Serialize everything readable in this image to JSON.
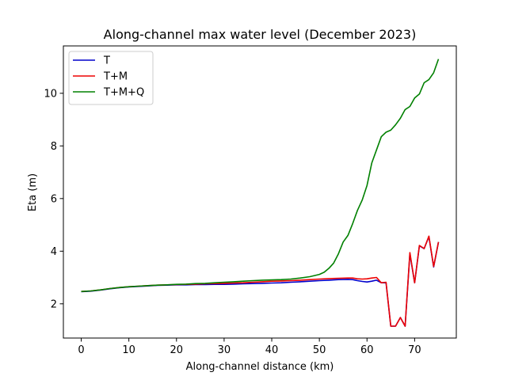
{
  "chart_data": {
    "type": "line",
    "title": "Along-channel max water level (December 2023)",
    "xlabel": "Along-channel distance (km)",
    "ylabel": "Eta (m)",
    "xlim": [
      -3.75,
      78.75
    ],
    "ylim": [
      0.7,
      11.8
    ],
    "xticks": [
      0,
      10,
      20,
      30,
      40,
      50,
      60,
      70
    ],
    "yticks": [
      2,
      4,
      6,
      8,
      10
    ],
    "grid": false,
    "legend_position": "top-left",
    "series": [
      {
        "name": "T",
        "color": "#0000cc",
        "x": [
          0,
          2,
          4,
          6,
          8,
          10,
          12,
          14,
          16,
          18,
          20,
          22,
          24,
          26,
          28,
          30,
          32,
          34,
          36,
          38,
          40,
          42,
          44,
          46,
          48,
          50,
          52,
          54,
          56,
          57,
          58,
          59,
          60,
          61,
          62,
          63,
          64,
          65,
          66,
          67,
          68,
          69,
          70,
          71,
          72,
          73,
          74,
          75
        ],
        "y": [
          2.46,
          2.48,
          2.52,
          2.57,
          2.61,
          2.64,
          2.66,
          2.68,
          2.7,
          2.71,
          2.72,
          2.72,
          2.73,
          2.73,
          2.74,
          2.74,
          2.75,
          2.76,
          2.77,
          2.78,
          2.79,
          2.8,
          2.82,
          2.84,
          2.86,
          2.88,
          2.9,
          2.92,
          2.93,
          2.92,
          2.88,
          2.85,
          2.83,
          2.86,
          2.9,
          2.8,
          2.8,
          1.15,
          1.15,
          1.48,
          1.15,
          3.9,
          2.8,
          4.2,
          4.1,
          4.55,
          3.4,
          4.35
        ]
      },
      {
        "name": "T+M",
        "color": "#ee0000",
        "x": [
          0,
          2,
          4,
          6,
          8,
          10,
          12,
          14,
          16,
          18,
          20,
          22,
          24,
          26,
          28,
          30,
          32,
          34,
          36,
          38,
          40,
          42,
          44,
          46,
          48,
          50,
          52,
          54,
          56,
          57,
          58,
          59,
          60,
          61,
          62,
          63,
          64,
          65,
          66,
          67,
          68,
          69,
          70,
          71,
          72,
          73,
          74,
          75
        ],
        "y": [
          2.47,
          2.49,
          2.53,
          2.58,
          2.62,
          2.65,
          2.67,
          2.69,
          2.71,
          2.72,
          2.73,
          2.74,
          2.75,
          2.76,
          2.77,
          2.78,
          2.79,
          2.8,
          2.82,
          2.84,
          2.86,
          2.87,
          2.88,
          2.9,
          2.92,
          2.94,
          2.96,
          2.97,
          2.98,
          2.98,
          2.95,
          2.94,
          2.95,
          2.98,
          3.0,
          2.8,
          2.82,
          1.15,
          1.15,
          1.48,
          1.15,
          3.95,
          2.8,
          4.22,
          4.1,
          4.57,
          3.42,
          4.35
        ]
      },
      {
        "name": "T+M+Q",
        "color": "#008000",
        "x": [
          0,
          2,
          4,
          6,
          8,
          10,
          12,
          14,
          16,
          18,
          20,
          22,
          24,
          26,
          28,
          30,
          32,
          34,
          36,
          38,
          40,
          42,
          44,
          46,
          48,
          50,
          51,
          52,
          53,
          54,
          55,
          56,
          57,
          58,
          59,
          60,
          61,
          62,
          63,
          64,
          65,
          66,
          67,
          68,
          69,
          70,
          71,
          72,
          73,
          74,
          75
        ],
        "y": [
          2.47,
          2.49,
          2.53,
          2.58,
          2.62,
          2.65,
          2.67,
          2.69,
          2.71,
          2.72,
          2.74,
          2.75,
          2.77,
          2.78,
          2.8,
          2.82,
          2.84,
          2.86,
          2.88,
          2.9,
          2.91,
          2.92,
          2.94,
          2.98,
          3.03,
          3.12,
          3.2,
          3.35,
          3.55,
          3.9,
          4.35,
          4.6,
          5.05,
          5.55,
          5.95,
          6.5,
          7.35,
          7.85,
          8.35,
          8.52,
          8.6,
          8.8,
          9.05,
          9.38,
          9.5,
          9.82,
          9.97,
          10.4,
          10.52,
          10.78,
          11.3
        ]
      }
    ]
  }
}
